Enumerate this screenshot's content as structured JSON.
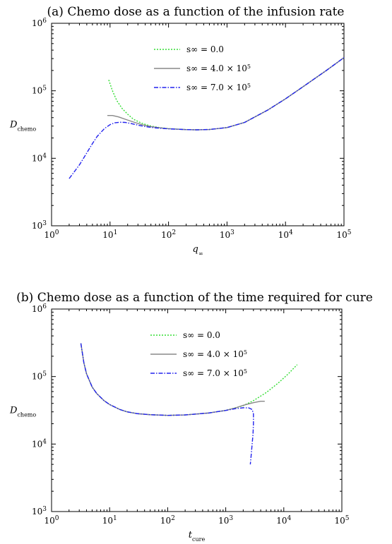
{
  "chart_data": [
    {
      "type": "line",
      "title": "(a) Chemo dose as a function of the infusion rate",
      "xlabel": "q∞",
      "ylabel": "Dchemo",
      "xscale": "log",
      "yscale": "log",
      "xlim": [
        1,
        100000
      ],
      "ylim": [
        1000,
        1000000
      ],
      "xticks": [
        1,
        10,
        100,
        1000,
        10000,
        100000
      ],
      "yticks": [
        1000,
        10000,
        100000,
        1000000
      ],
      "grid": false,
      "legend_position": "top-center",
      "series": [
        {
          "name": "s∞ = 0.0",
          "color": "#33dd33",
          "dash": "dotted",
          "x": [
            9.5,
            11,
            13,
            16,
            20,
            25,
            35,
            50,
            70,
            100,
            150,
            200,
            300,
            500,
            1000,
            2000,
            5000,
            10000,
            20000,
            50000,
            100000
          ],
          "y": [
            145000,
            100000,
            72000,
            55000,
            45000,
            38000,
            33000,
            30000,
            28500,
            27500,
            27000,
            26600,
            26400,
            26700,
            28500,
            34000,
            52000,
            76000,
            115000,
            200000,
            310000
          ]
        },
        {
          "name": "s∞ = 4.0 × 10^5",
          "color": "#888888",
          "dash": "solid",
          "x": [
            9,
            11,
            14,
            18,
            25,
            35,
            50,
            70,
            100,
            150,
            200,
            300,
            500,
            1000,
            2000,
            5000,
            10000,
            20000,
            50000,
            100000
          ],
          "y": [
            43000,
            43000,
            41000,
            38000,
            34500,
            31500,
            29500,
            28300,
            27400,
            26900,
            26600,
            26400,
            26700,
            28500,
            34000,
            52000,
            76000,
            115000,
            200000,
            310000
          ]
        },
        {
          "name": "s∞ = 7.0 × 10^5",
          "color": "#2222ee",
          "dash": "dashdot",
          "x": [
            2,
            3,
            4,
            5,
            6,
            8,
            10,
            12,
            15,
            18,
            22,
            30,
            40,
            60,
            100,
            150,
            200,
            300,
            500,
            1000,
            2000,
            5000,
            10000,
            20000,
            50000,
            100000
          ],
          "y": [
            5000,
            8000,
            12000,
            16500,
            21000,
            27500,
            31500,
            33500,
            34200,
            34000,
            33000,
            31000,
            29500,
            28200,
            27300,
            26900,
            26600,
            26400,
            26700,
            28500,
            34000,
            52000,
            76000,
            115000,
            200000,
            310000
          ]
        }
      ]
    },
    {
      "type": "line",
      "title": "(b) Chemo dose as a function of the time required for cure",
      "xlabel": "tcure",
      "ylabel": "Dchemo",
      "xscale": "log",
      "yscale": "log",
      "xlim": [
        1,
        100000
      ],
      "ylim": [
        1000,
        1000000
      ],
      "xticks": [
        1,
        10,
        100,
        1000,
        10000,
        100000
      ],
      "yticks": [
        1000,
        10000,
        100000,
        1000000
      ],
      "grid": false,
      "legend_position": "top-center",
      "series": [
        {
          "name": "s∞ = 0.0",
          "color": "#33dd33",
          "dash": "dotted",
          "x": [
            3.2,
            3.6,
            4,
            5,
            6,
            8,
            10,
            15,
            20,
            30,
            50,
            100,
            200,
            500,
            1000,
            2000,
            3000,
            5000,
            8000,
            12000,
            17000
          ],
          "y": [
            310000,
            160000,
            110000,
            70000,
            56000,
            44000,
            38500,
            32500,
            30000,
            28200,
            27200,
            26600,
            27000,
            28800,
            31500,
            37000,
            44000,
            58000,
            80000,
            110000,
            150000
          ]
        },
        {
          "name": "s∞ = 4.0 × 10^5",
          "color": "#888888",
          "dash": "solid",
          "x": [
            3.2,
            3.6,
            4,
            5,
            6,
            8,
            10,
            15,
            20,
            30,
            50,
            100,
            200,
            500,
            1000,
            1500,
            2000,
            3000,
            4000,
            4700
          ],
          "y": [
            310000,
            160000,
            110000,
            70000,
            56000,
            44000,
            38500,
            32500,
            30000,
            28200,
            27200,
            26600,
            27000,
            28800,
            31500,
            34500,
            37500,
            41000,
            43000,
            43000
          ]
        },
        {
          "name": "s∞ = 7.0 × 10^5",
          "color": "#2222ee",
          "dash": "dashdot",
          "x": [
            3.2,
            3.6,
            4,
            5,
            6,
            8,
            10,
            15,
            20,
            30,
            50,
            100,
            200,
            500,
            1000,
            1500,
            2000,
            2500,
            2850,
            3000,
            3000,
            2950,
            2850,
            2750,
            2650
          ],
          "y": [
            310000,
            160000,
            110000,
            70000,
            56000,
            44000,
            38500,
            32500,
            30000,
            28200,
            27200,
            26600,
            27000,
            28800,
            31500,
            33500,
            34500,
            34300,
            32500,
            28000,
            20000,
            14000,
            10000,
            7000,
            5000
          ]
        }
      ]
    }
  ]
}
